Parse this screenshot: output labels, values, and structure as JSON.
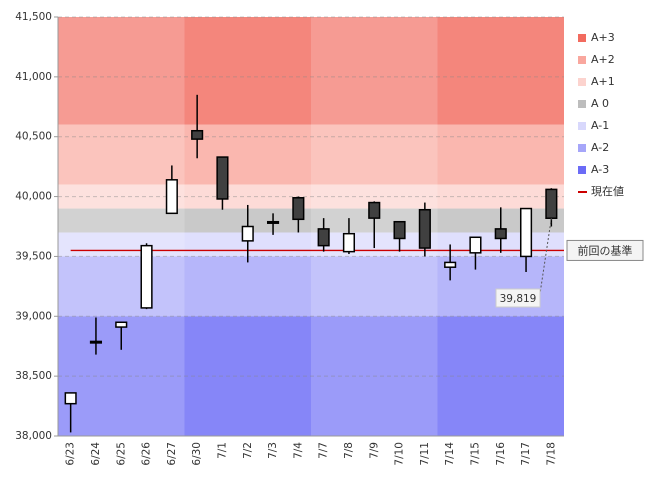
{
  "chart_data": {
    "type": "candlestick",
    "categories": [
      "6/23",
      "6/24",
      "6/25",
      "6/26",
      "6/27",
      "6/30",
      "7/1",
      "7/2",
      "7/3",
      "7/4",
      "7/7",
      "7/8",
      "7/9",
      "7/10",
      "7/11",
      "7/14",
      "7/15",
      "7/16",
      "7/17",
      "7/18"
    ],
    "open": [
      38270,
      38780,
      38910,
      39070,
      39860,
      40550,
      40330,
      39630,
      39780,
      39990,
      39730,
      39540,
      39950,
      39790,
      39890,
      39410,
      39530,
      39730,
      39500,
      40060
    ],
    "high": [
      38360,
      38990,
      38950,
      39610,
      40260,
      40850,
      40330,
      39930,
      39860,
      40000,
      39820,
      39820,
      39960,
      39790,
      39950,
      39600,
      39660,
      39910,
      39900,
      40070
    ],
    "low": [
      38030,
      38680,
      38720,
      39060,
      39860,
      40320,
      39890,
      39450,
      39680,
      39700,
      39540,
      39520,
      39570,
      39540,
      39500,
      39300,
      39390,
      39530,
      39370,
      39750
    ],
    "close": [
      38360,
      38790,
      38950,
      39590,
      40140,
      40480,
      39980,
      39750,
      39790,
      39810,
      39590,
      39690,
      39820,
      39650,
      39570,
      39450,
      39660,
      39650,
      39900,
      39819
    ],
    "up_color": "#ffffff",
    "down_color": "#404040",
    "ylim": [
      38000,
      41500
    ],
    "yticks": [
      {
        "value": 38000,
        "label": "38,000"
      },
      {
        "value": 38500,
        "label": "38,500"
      },
      {
        "value": 39000,
        "label": "39,000"
      },
      {
        "value": 39500,
        "label": "39,500"
      },
      {
        "value": 40000,
        "label": "40,000"
      },
      {
        "value": 40500,
        "label": "40,500"
      },
      {
        "value": 41000,
        "label": "41,000"
      },
      {
        "value": 41500,
        "label": "41,500"
      }
    ],
    "grid": true,
    "bands": [
      {
        "name": "A+3",
        "from": 40600,
        "to": 41500,
        "color": "#f26b5f"
      },
      {
        "name": "A+2",
        "from": 40100,
        "to": 40600,
        "color": "#f9a79e"
      },
      {
        "name": "A+1",
        "from": 39900,
        "to": 40100,
        "color": "#fcd3ce"
      },
      {
        "name": "A 0",
        "from": 39700,
        "to": 39900,
        "color": "#bdbdbd"
      },
      {
        "name": "A-1",
        "from": 39500,
        "to": 39700,
        "color": "#d8d8fc"
      },
      {
        "name": "A-2",
        "from": 39000,
        "to": 39500,
        "color": "#a6a6f9"
      },
      {
        "name": "A-3",
        "from": 38000,
        "to": 39000,
        "color": "#6b6bf6"
      }
    ],
    "reference_line": {
      "name": "現在値",
      "value": 39550,
      "color": "#cc0000",
      "callout": "前回の基準"
    },
    "annotation": {
      "value": 39819,
      "label": "39,819"
    }
  }
}
